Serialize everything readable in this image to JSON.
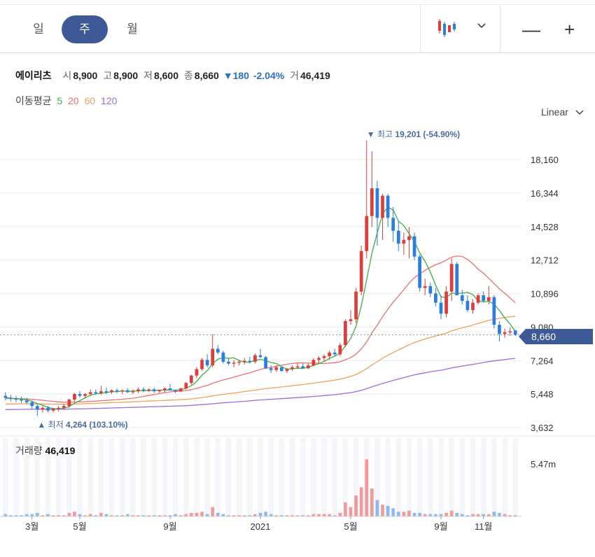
{
  "tabs": [
    {
      "label": "일"
    },
    {
      "label": "주"
    },
    {
      "label": "월"
    }
  ],
  "controls": {
    "dropdown_icon": "chevron-down-icon",
    "minus": "—",
    "plus": "+"
  },
  "stock": {
    "name": "에이리츠",
    "open_label": "시",
    "open": "8,900",
    "high_label": "고",
    "high": "8,900",
    "low_label": "저",
    "low": "8,600",
    "close_label": "종",
    "close": "8,660",
    "change": "▼180",
    "change_pct": "-2.04%",
    "volume_label": "거",
    "volume": "46,419"
  },
  "ma_legend": {
    "label": "이동평균",
    "periods": [
      "5",
      "20",
      "60",
      "120"
    ],
    "colors": [
      "#3cb043",
      "#f07070",
      "#f3a05a",
      "#9b6de0"
    ]
  },
  "scale_label": "Linear",
  "current_price": "8,660",
  "annotations": {
    "high": {
      "text": "▼ 최고",
      "value": "19,201",
      "pct": "(-54.90%)"
    },
    "low": {
      "text": "▲ 최저",
      "value": "4,264",
      "pct": "(103.10%)"
    }
  },
  "volume_panel": {
    "label": "거래량",
    "value": "46,419",
    "axis_label": "5.47m"
  },
  "colors": {
    "up": "#e23b3b",
    "down": "#2a7de1",
    "accent": "#3d5a96"
  },
  "chart_data": {
    "type": "candlestick",
    "y_ticks": [
      18160,
      16344,
      14528,
      12712,
      10896,
      9080,
      7264,
      5448,
      3632
    ],
    "ylim": [
      3000,
      19600
    ],
    "x_ticks": [
      {
        "label": "3월",
        "index": 5
      },
      {
        "label": "5월",
        "index": 14
      },
      {
        "label": "9월",
        "index": 31
      },
      {
        "label": "2021",
        "index": 48
      },
      {
        "label": "5월",
        "index": 65
      },
      {
        "label": "9월",
        "index": 82
      },
      {
        "label": "11월",
        "index": 90
      }
    ],
    "candles": [
      [
        5350,
        5550,
        5100,
        5250
      ],
      [
        5250,
        5400,
        5050,
        5200
      ],
      [
        5200,
        5350,
        5000,
        5150
      ],
      [
        5150,
        5300,
        4950,
        5100
      ],
      [
        5100,
        5250,
        4900,
        5000
      ],
      [
        5000,
        5100,
        4600,
        4800
      ],
      [
        4800,
        4900,
        4264,
        4600
      ],
      [
        4600,
        4800,
        4450,
        4700
      ],
      [
        4700,
        4800,
        4450,
        4550
      ],
      [
        4550,
        4700,
        4450,
        4650
      ],
      [
        4650,
        4800,
        4500,
        4700
      ],
      [
        4700,
        4900,
        4600,
        4800
      ],
      [
        4800,
        5200,
        4700,
        5150
      ],
      [
        5150,
        5500,
        5050,
        5450
      ],
      [
        5450,
        5600,
        5250,
        5350
      ],
      [
        5350,
        5500,
        5200,
        5450
      ],
      [
        5450,
        5700,
        5350,
        5550
      ],
      [
        5550,
        5700,
        5400,
        5500
      ],
      [
        5500,
        5900,
        5400,
        5600
      ],
      [
        5600,
        5800,
        5450,
        5550
      ],
      [
        5550,
        5700,
        5450,
        5650
      ],
      [
        5650,
        5750,
        5500,
        5600
      ],
      [
        5600,
        5700,
        5450,
        5650
      ],
      [
        5650,
        5750,
        5500,
        5550
      ],
      [
        5550,
        5700,
        5450,
        5600
      ],
      [
        5600,
        5800,
        5500,
        5700
      ],
      [
        5700,
        5800,
        5550,
        5650
      ],
      [
        5650,
        5750,
        5550,
        5700
      ],
      [
        5700,
        5800,
        5500,
        5600
      ],
      [
        5600,
        5700,
        5500,
        5650
      ],
      [
        5650,
        5800,
        5550,
        5750
      ],
      [
        5750,
        6000,
        5650,
        5650
      ],
      [
        5650,
        5700,
        5500,
        5600
      ],
      [
        5600,
        5800,
        5550,
        5750
      ],
      [
        5750,
        6100,
        5700,
        6050
      ],
      [
        6050,
        6500,
        5950,
        6450
      ],
      [
        6450,
        6900,
        6300,
        6800
      ],
      [
        6800,
        7400,
        6700,
        7300
      ],
      [
        7300,
        7600,
        6900,
        7000
      ],
      [
        7000,
        8700,
        6900,
        7900
      ],
      [
        7900,
        8100,
        7600,
        7700
      ],
      [
        7700,
        7800,
        7100,
        7200
      ],
      [
        7200,
        7400,
        7000,
        7100
      ],
      [
        7100,
        7300,
        6900,
        7150
      ],
      [
        7150,
        7300,
        7000,
        7200
      ],
      [
        7200,
        7400,
        7050,
        7250
      ],
      [
        7250,
        7450,
        7100,
        7200
      ],
      [
        7200,
        7650,
        7100,
        7550
      ],
      [
        7550,
        7900,
        7400,
        7450
      ],
      [
        7450,
        7500,
        6800,
        6850
      ],
      [
        6850,
        7000,
        6600,
        6750
      ],
      [
        6750,
        7000,
        6650,
        6900
      ],
      [
        6900,
        6950,
        6650,
        6700
      ],
      [
        6700,
        6850,
        6600,
        6800
      ],
      [
        6800,
        7000,
        6700,
        6900
      ],
      [
        6900,
        7100,
        6800,
        6950
      ],
      [
        6950,
        7100,
        6800,
        6850
      ],
      [
        6850,
        7100,
        6800,
        7000
      ],
      [
        7000,
        7400,
        6950,
        7300
      ],
      [
        7300,
        7500,
        7100,
        7400
      ],
      [
        7400,
        7600,
        7200,
        7500
      ],
      [
        7500,
        7800,
        7300,
        7700
      ],
      [
        7700,
        7900,
        7500,
        7600
      ],
      [
        7600,
        8200,
        7500,
        8100
      ],
      [
        8100,
        9500,
        8000,
        9400
      ],
      [
        9400,
        10000,
        9200,
        9500
      ],
      [
        9500,
        11200,
        9300,
        11000
      ],
      [
        11000,
        13500,
        10800,
        13200
      ],
      [
        13200,
        19201,
        12800,
        15100
      ],
      [
        15100,
        18600,
        14500,
        16600
      ],
      [
        16600,
        17000,
        13500,
        15000
      ],
      [
        15000,
        16300,
        13800,
        16200
      ],
      [
        16200,
        16300,
        14500,
        15000
      ],
      [
        15000,
        15600,
        13700,
        14300
      ],
      [
        14300,
        14800,
        13200,
        13600
      ],
      [
        13600,
        14200,
        13000,
        13800
      ],
      [
        13800,
        14500,
        12800,
        14000
      ],
      [
        14000,
        14200,
        12700,
        12900
      ],
      [
        12900,
        13000,
        11000,
        11200
      ],
      [
        11200,
        11700,
        10800,
        11300
      ],
      [
        11300,
        11500,
        10700,
        10900
      ],
      [
        10900,
        11200,
        10200,
        10400
      ],
      [
        10400,
        10800,
        9500,
        9800
      ],
      [
        9800,
        11300,
        9600,
        11000
      ],
      [
        11000,
        12800,
        10500,
        12500
      ],
      [
        12500,
        12600,
        10800,
        10800
      ],
      [
        10800,
        11100,
        10300,
        10500
      ],
      [
        10500,
        10800,
        9900,
        10000
      ],
      [
        10000,
        10600,
        9800,
        10400
      ],
      [
        10400,
        10900,
        10300,
        10800
      ],
      [
        10800,
        11000,
        10400,
        10500
      ],
      [
        10500,
        11300,
        10300,
        10700
      ],
      [
        10700,
        10800,
        9000,
        9200
      ],
      [
        9200,
        9400,
        8300,
        8700
      ],
      [
        8700,
        9000,
        8500,
        8800
      ],
      [
        8800,
        9050,
        8600,
        8850
      ],
      [
        8900,
        8900,
        8600,
        8660
      ]
    ],
    "volume": [
      2,
      1,
      1,
      1,
      2,
      2,
      3,
      1,
      2,
      1,
      1,
      1,
      3,
      4,
      2,
      1,
      2,
      1,
      3,
      2,
      1,
      1,
      1,
      2,
      1,
      1,
      1,
      1,
      1,
      1,
      1,
      1,
      2,
      1,
      2,
      3,
      3,
      4,
      2,
      8,
      3,
      2,
      1,
      1,
      1,
      1,
      1,
      2,
      3,
      4,
      2,
      1,
      1,
      1,
      1,
      1,
      1,
      1,
      2,
      2,
      2,
      2,
      1,
      3,
      12,
      8,
      18,
      25,
      49,
      24,
      14,
      10,
      9,
      7,
      4,
      4,
      5,
      3,
      3,
      2,
      2,
      2,
      2,
      3,
      5,
      3,
      2,
      1,
      2,
      2,
      2,
      2,
      4,
      3,
      2,
      1,
      1
    ],
    "ma_series": {
      "5": [],
      "20": [],
      "60": [],
      "120": []
    }
  }
}
